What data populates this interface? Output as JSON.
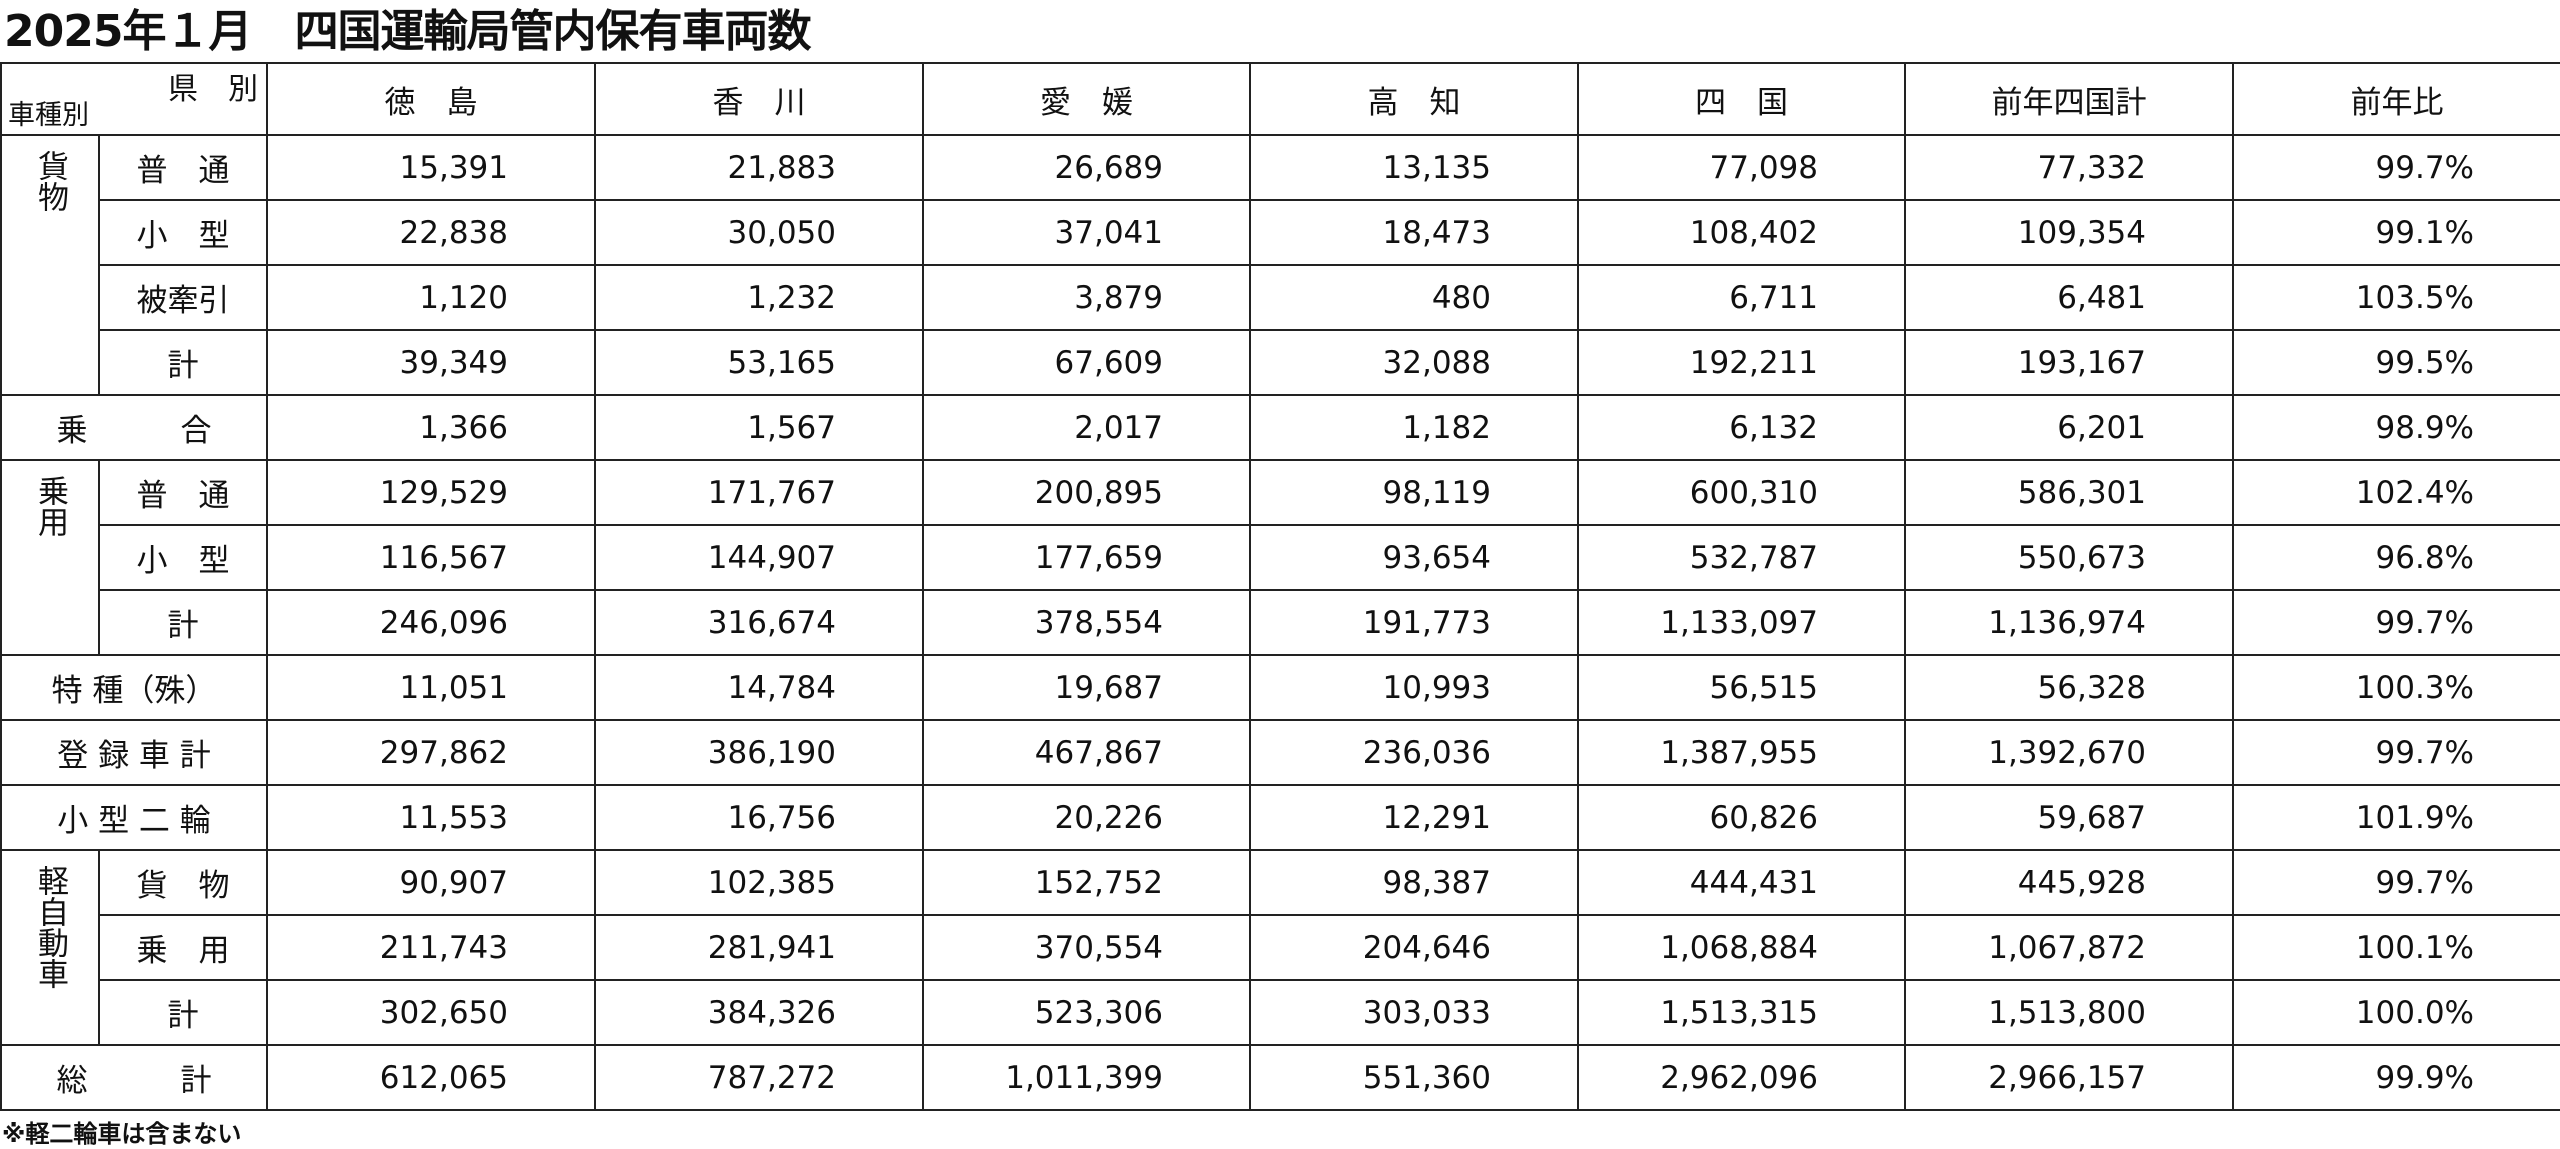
{
  "title": "2025年１月　四国運輸局管内保有車両数",
  "table": {
    "corner": {
      "top": "県　別",
      "bottom": "車種別"
    },
    "columns": [
      "徳　島",
      "香　川",
      "愛　媛",
      "高　知",
      "四　国",
      "前年四国計",
      "前年比"
    ],
    "sections": [
      {
        "label": "貨物",
        "rows": [
          {
            "label": "普　通",
            "values": [
              "15,391",
              "21,883",
              "26,689",
              "13,135",
              "77,098",
              "77,332",
              "99.7%"
            ]
          },
          {
            "label": "小　型",
            "values": [
              "22,838",
              "30,050",
              "37,041",
              "18,473",
              "108,402",
              "109,354",
              "99.1%"
            ]
          },
          {
            "label": "被牽引",
            "values": [
              "1,120",
              "1,232",
              "3,879",
              "480",
              "6,711",
              "6,481",
              "103.5%"
            ]
          },
          {
            "label": "計",
            "values": [
              "39,349",
              "53,165",
              "67,609",
              "32,088",
              "192,211",
              "193,167",
              "99.5%"
            ]
          }
        ]
      },
      {
        "label": "乗　　　合",
        "values": [
          "1,366",
          "1,567",
          "2,017",
          "1,182",
          "6,132",
          "6,201",
          "98.9%"
        ]
      },
      {
        "label": "乗用",
        "rows": [
          {
            "label": "普　通",
            "values": [
              "129,529",
              "171,767",
              "200,895",
              "98,119",
              "600,310",
              "586,301",
              "102.4%"
            ]
          },
          {
            "label": "小　型",
            "values": [
              "116,567",
              "144,907",
              "177,659",
              "93,654",
              "532,787",
              "550,673",
              "96.8%"
            ]
          },
          {
            "label": "計",
            "values": [
              "246,096",
              "316,674",
              "378,554",
              "191,773",
              "1,133,097",
              "1,136,974",
              "99.7%"
            ]
          }
        ]
      },
      {
        "label": "特 種（殊）",
        "values": [
          "11,051",
          "14,784",
          "19,687",
          "10,993",
          "56,515",
          "56,328",
          "100.3%"
        ]
      },
      {
        "label": "登 録 車 計",
        "values": [
          "297,862",
          "386,190",
          "467,867",
          "236,036",
          "1,387,955",
          "1,392,670",
          "99.7%"
        ]
      },
      {
        "label": "小 型 二 輪",
        "values": [
          "11,553",
          "16,756",
          "20,226",
          "12,291",
          "60,826",
          "59,687",
          "101.9%"
        ]
      },
      {
        "label": "軽自動車",
        "rows": [
          {
            "label": "貨　物",
            "values": [
              "90,907",
              "102,385",
              "152,752",
              "98,387",
              "444,431",
              "445,928",
              "99.7%"
            ]
          },
          {
            "label": "乗　用",
            "values": [
              "211,743",
              "281,941",
              "370,554",
              "204,646",
              "1,068,884",
              "1,067,872",
              "100.1%"
            ]
          },
          {
            "label": "計",
            "values": [
              "302,650",
              "384,326",
              "523,306",
              "303,033",
              "1,513,315",
              "1,513,800",
              "100.0%"
            ]
          }
        ]
      },
      {
        "label": "総　　　計",
        "values": [
          "612,065",
          "787,272",
          "1,011,399",
          "551,360",
          "2,962,096",
          "2,966,157",
          "99.9%"
        ]
      }
    ]
  },
  "footnote": "※軽二輪車は含まない"
}
